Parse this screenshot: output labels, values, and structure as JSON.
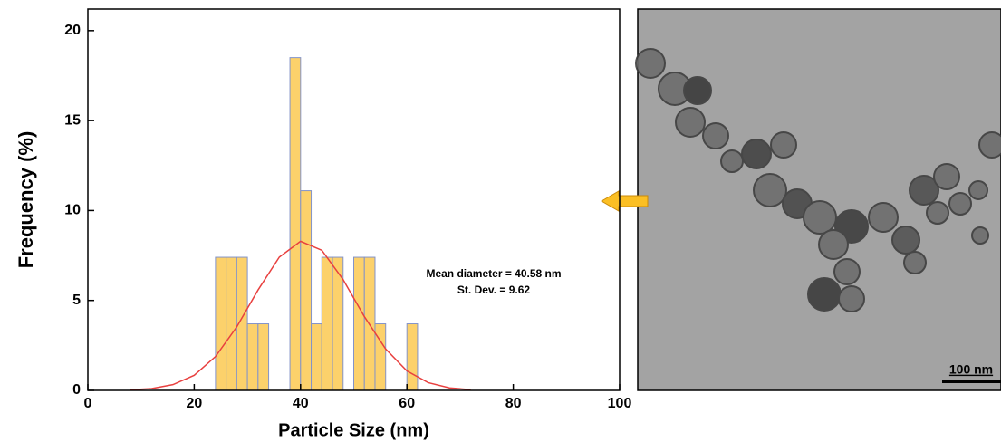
{
  "chart_data": {
    "type": "histogram",
    "xlabel": "Particle Size (nm)",
    "ylabel": "Frequency (%)",
    "bins": [
      24,
      26,
      28,
      30,
      32,
      34,
      36,
      38,
      40,
      42,
      44,
      46,
      48,
      50,
      52,
      54,
      56,
      58,
      60,
      62
    ],
    "values": [
      7.4,
      7.4,
      7.4,
      3.7,
      3.7,
      0,
      0,
      18.5,
      11.1,
      3.7,
      7.4,
      7.4,
      0,
      7.4,
      7.4,
      3.7,
      0,
      0,
      3.7
    ],
    "color": "#fcd16b",
    "edgecolor": "#8393c9",
    "xlim": [
      0,
      100
    ],
    "ylim": [
      0,
      21.2
    ],
    "xticks": [
      0,
      20,
      40,
      60,
      80,
      100
    ],
    "yticks": [
      0,
      5,
      10,
      15,
      20
    ],
    "fit": {
      "color": "#e8403f",
      "x": [
        8,
        12,
        16,
        20,
        24,
        28,
        32,
        36,
        40,
        44,
        48,
        52,
        56,
        60,
        64,
        68,
        72
      ],
      "values": [
        0.03,
        0.1,
        0.32,
        0.84,
        1.88,
        3.53,
        5.58,
        7.41,
        8.29,
        7.79,
        6.16,
        4.1,
        2.3,
        1.08,
        0.43,
        0.14,
        0.04
      ]
    },
    "annotations": [
      "Mean diameter = 40.58 nm",
      "St. Dev. = 9.62"
    ]
  },
  "image": {
    "scale_bar": "100 nm"
  }
}
